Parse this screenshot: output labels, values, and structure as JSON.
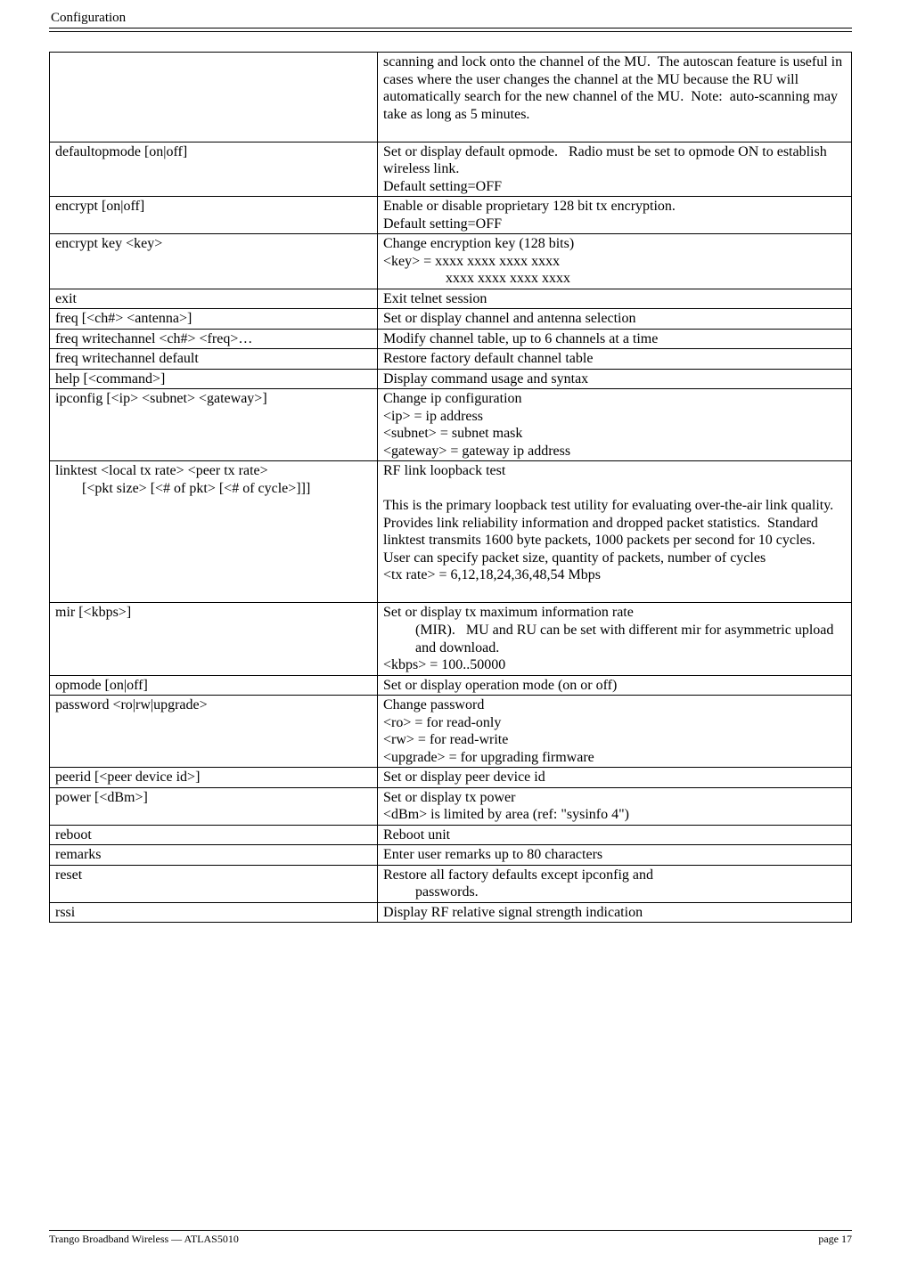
{
  "header": {
    "section_title": "Configuration"
  },
  "table": {
    "rows": [
      {
        "left": [
          ""
        ],
        "right": [
          "scanning and lock onto the channel of the MU.  The autoscan feature is useful in cases where the user changes the channel at the MU because the RU will automatically search for the new channel of the MU.  Note:  auto-scanning may take as long as 5 minutes.",
          " "
        ]
      },
      {
        "left": [
          "defaultopmode [on|off]"
        ],
        "right": [
          "Set or display default opmode.   Radio must be set to opmode ON to establish wireless link.",
          "Default setting=OFF"
        ]
      },
      {
        "left": [
          "encrypt [on|off]"
        ],
        "right": [
          "Enable or disable proprietary 128 bit tx encryption.",
          "Default setting=OFF"
        ]
      },
      {
        "left": [
          "encrypt key <key>"
        ],
        "right_lines": [
          {
            "text": "Change encryption key (128 bits)",
            "class": ""
          },
          {
            "text": "<key> = xxxx xxxx xxxx xxxx",
            "class": ""
          },
          {
            "text": "xxxx xxxx xxxx xxxx",
            "class": "indent-key"
          }
        ]
      },
      {
        "left": [
          "exit"
        ],
        "right": [
          "Exit telnet session"
        ]
      },
      {
        "left": [
          "freq [<ch#> <antenna>]"
        ],
        "right": [
          "Set or display channel and antenna selection"
        ]
      },
      {
        "left": [
          "freq writechannel <ch#> <freq>…"
        ],
        "right": [
          "Modify channel table, up to 6 channels at a time"
        ]
      },
      {
        "left": [
          "freq writechannel default"
        ],
        "right": [
          "Restore factory default channel table"
        ]
      },
      {
        "left": [
          "help [<command>]"
        ],
        "right": [
          "Display command usage and syntax"
        ]
      },
      {
        "left": [
          "ipconfig [<ip> <subnet> <gateway>]"
        ],
        "right": [
          "Change ip configuration",
          "<ip> = ip address",
          "<subnet> = subnet mask",
          "<gateway> = gateway ip address"
        ]
      },
      {
        "left_lines": [
          {
            "text": "linktest <local tx rate> <peer tx rate>",
            "class": ""
          },
          {
            "text": "[<pkt size> [<# of pkt> [<# of cycle>]]]",
            "class": "indent1"
          }
        ],
        "right": [
          "RF link loopback test",
          " ",
          "This is the primary loopback test utility for evaluating over-the-air link quality.  Provides link reliability information and dropped packet statistics.  Standard linktest transmits 1600 byte packets, 1000 packets per second for 10 cycles.  User can specify packet size, quantity of packets, number of cycles",
          "<tx rate> = 6,12,18,24,36,48,54 Mbps",
          " "
        ]
      },
      {
        "left": [
          "mir [<kbps>]"
        ],
        "right_lines": [
          {
            "text": "Set or display tx maximum information rate",
            "class": ""
          },
          {
            "text": "(MIR).   MU and RU can be set with different mir for asymmetric upload and download.",
            "class": "indent2"
          },
          {
            "text": "<kbps> = 100..50000",
            "class": ""
          }
        ]
      },
      {
        "left": [
          "opmode [on|off]"
        ],
        "right": [
          "Set or display operation mode (on or off)"
        ]
      },
      {
        "left": [
          "password <ro|rw|upgrade>"
        ],
        "right": [
          "Change password",
          "<ro> = for read-only",
          "<rw> = for read-write",
          "<upgrade> = for upgrading firmware"
        ]
      },
      {
        "left": [
          "peerid [<peer device id>]"
        ],
        "right": [
          "Set or display peer device id"
        ]
      },
      {
        "left": [
          "power [<dBm>]"
        ],
        "right": [
          "Set or display tx power",
          "<dBm> is limited by area (ref: \"sysinfo 4\")"
        ]
      },
      {
        "left": [
          "reboot"
        ],
        "right": [
          "Reboot unit"
        ]
      },
      {
        "left": [
          "remarks"
        ],
        "right": [
          "Enter user remarks up to 80 characters"
        ]
      },
      {
        "left": [
          "reset"
        ],
        "right_lines": [
          {
            "text": "Restore all factory defaults except ipconfig and",
            "class": ""
          },
          {
            "text": "passwords.",
            "class": "indent2"
          }
        ]
      },
      {
        "left": [
          "rssi"
        ],
        "right": [
          "Display RF relative signal strength indication"
        ]
      }
    ]
  },
  "footer": {
    "left": "Trango Broadband Wireless — ATLAS5010",
    "right": "page 17"
  }
}
